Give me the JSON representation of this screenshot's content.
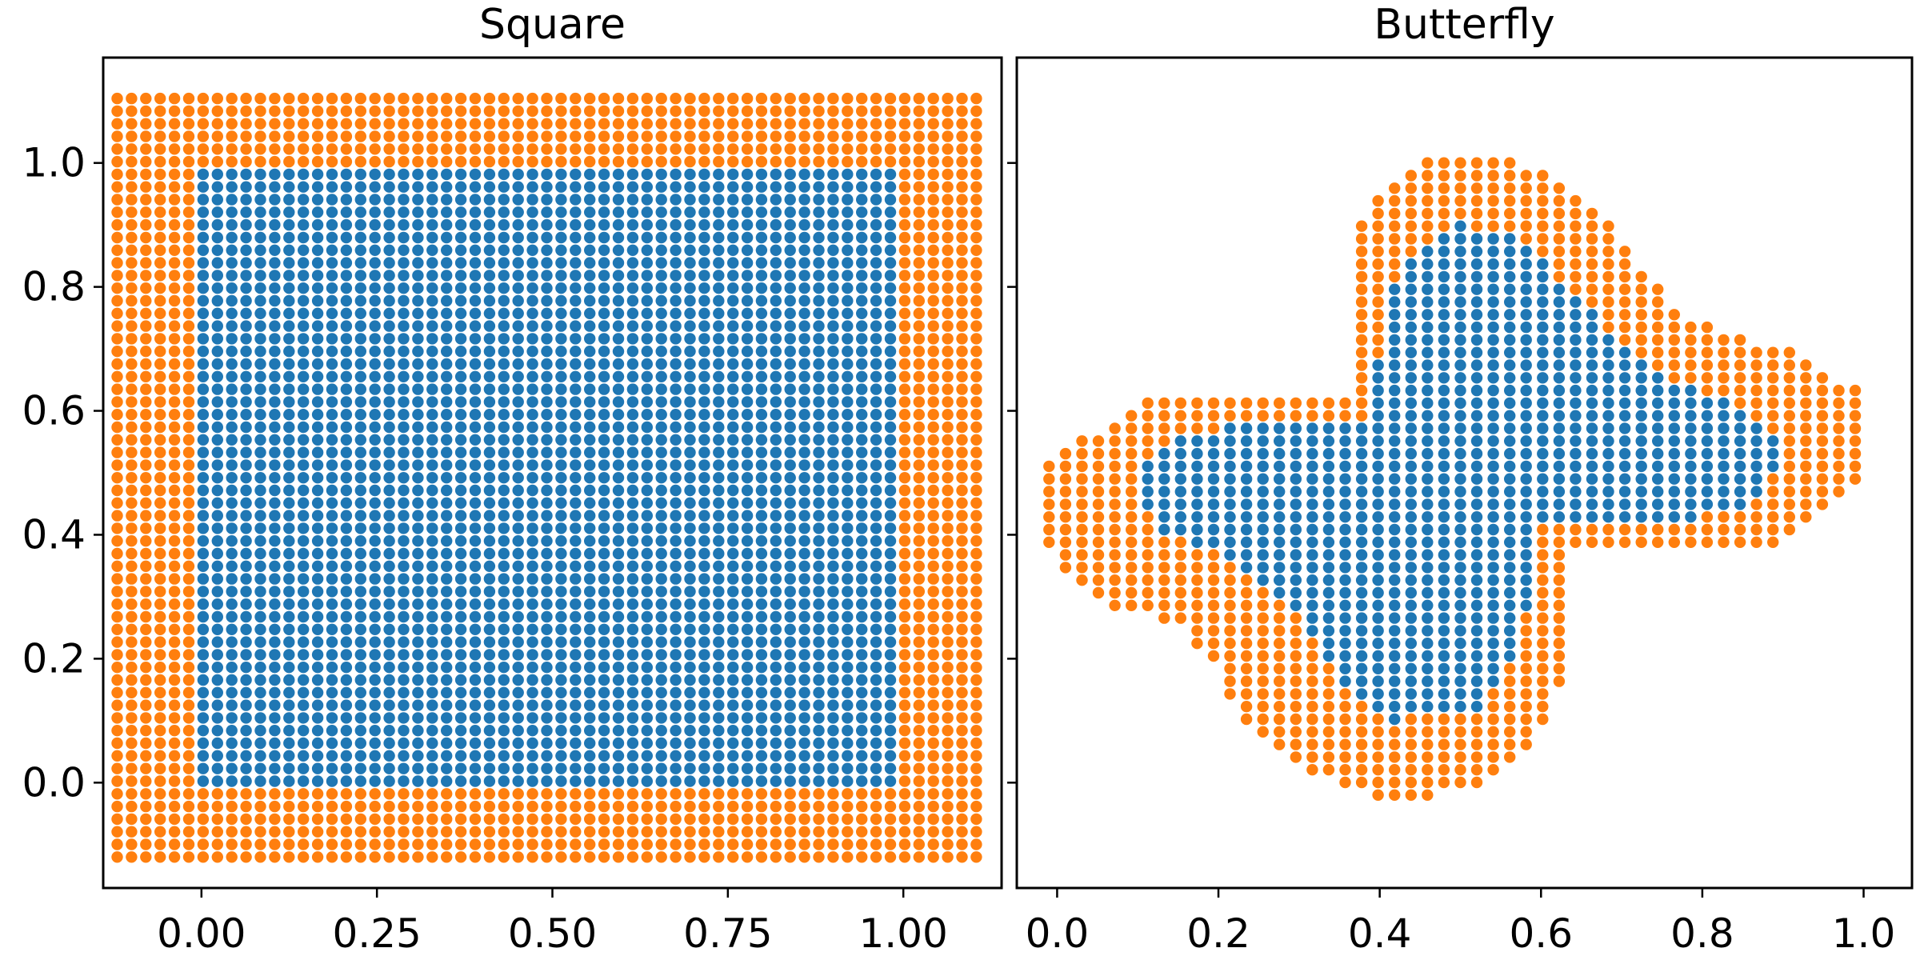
{
  "chart_data": [
    {
      "type": "scatter",
      "title": "Square",
      "xlabel": "",
      "ylabel": "",
      "xlim": [
        -0.14,
        1.14
      ],
      "ylim": [
        -0.17,
        1.17
      ],
      "xticks": [
        "0.00",
        "0.25",
        "0.50",
        "0.75",
        "1.00"
      ],
      "yticks": [
        "0.0",
        "0.2",
        "0.4",
        "0.6",
        "0.8",
        "1.0"
      ],
      "grid": false,
      "legend": "none",
      "grid_spacing": 0.0204,
      "series": [
        {
          "role": "interior",
          "color": "#1f77b4",
          "x_range": [
            0.0,
            1.0
          ],
          "y_range": [
            0.0,
            1.0
          ]
        },
        {
          "role": "boundary",
          "color": "#ff7f0e",
          "x_range": [
            -0.12,
            1.12
          ],
          "y_range": [
            -0.12,
            1.12
          ]
        }
      ]
    },
    {
      "type": "scatter",
      "title": "Butterfly",
      "xlabel": "",
      "ylabel": "",
      "xlim": [
        -0.05,
        1.06
      ],
      "ylim": [
        -0.17,
        1.17
      ],
      "xticks": [
        "0.0",
        "0.2",
        "0.4",
        "0.6",
        "0.8",
        "1.0"
      ],
      "yticks": [],
      "grid": false,
      "legend": "none",
      "grid_spacing": 0.0204,
      "band_width": 0.12,
      "series": [
        {
          "role": "interior",
          "color": "#1f77b4",
          "region": [
            [
              0.1,
              0.48
            ],
            [
              0.12,
              0.54
            ],
            [
              0.18,
              0.57
            ],
            [
              0.3,
              0.58
            ],
            [
              0.38,
              0.58
            ],
            [
              0.42,
              0.82
            ],
            [
              0.5,
              0.9
            ],
            [
              0.58,
              0.88
            ],
            [
              0.66,
              0.76
            ],
            [
              0.72,
              0.68
            ],
            [
              0.78,
              0.64
            ],
            [
              0.86,
              0.6
            ],
            [
              0.9,
              0.55
            ],
            [
              0.88,
              0.46
            ],
            [
              0.78,
              0.42
            ],
            [
              0.6,
              0.42
            ],
            [
              0.57,
              0.2
            ],
            [
              0.52,
              0.12
            ],
            [
              0.42,
              0.1
            ],
            [
              0.34,
              0.18
            ],
            [
              0.28,
              0.3
            ],
            [
              0.2,
              0.38
            ],
            [
              0.12,
              0.4
            ]
          ]
        },
        {
          "role": "boundary",
          "color": "#ff7f0e",
          "region": [
            [
              -0.01,
              0.38
            ],
            [
              -0.01,
              0.52
            ],
            [
              0.05,
              0.57
            ],
            [
              0.1,
              0.61
            ],
            [
              0.18,
              0.63
            ],
            [
              0.36,
              0.63
            ],
            [
              0.36,
              0.86
            ],
            [
              0.4,
              0.96
            ],
            [
              0.47,
              1.01
            ],
            [
              0.55,
              1.01
            ],
            [
              0.63,
              0.97
            ],
            [
              0.7,
              0.88
            ],
            [
              0.76,
              0.77
            ],
            [
              0.84,
              0.72
            ],
            [
              0.9,
              0.7
            ],
            [
              0.96,
              0.66
            ],
            [
              1.01,
              0.62
            ],
            [
              1.01,
              0.49
            ],
            [
              0.95,
              0.43
            ],
            [
              0.9,
              0.39
            ],
            [
              0.82,
              0.37
            ],
            [
              0.7,
              0.37
            ],
            [
              0.64,
              0.37
            ],
            [
              0.64,
              0.22
            ],
            [
              0.6,
              0.08
            ],
            [
              0.54,
              0.0
            ],
            [
              0.46,
              -0.02
            ],
            [
              0.38,
              -0.02
            ],
            [
              0.3,
              0.02
            ],
            [
              0.23,
              0.1
            ],
            [
              0.2,
              0.18
            ],
            [
              0.15,
              0.25
            ],
            [
              0.08,
              0.28
            ],
            [
              0.02,
              0.32
            ]
          ]
        }
      ]
    }
  ]
}
